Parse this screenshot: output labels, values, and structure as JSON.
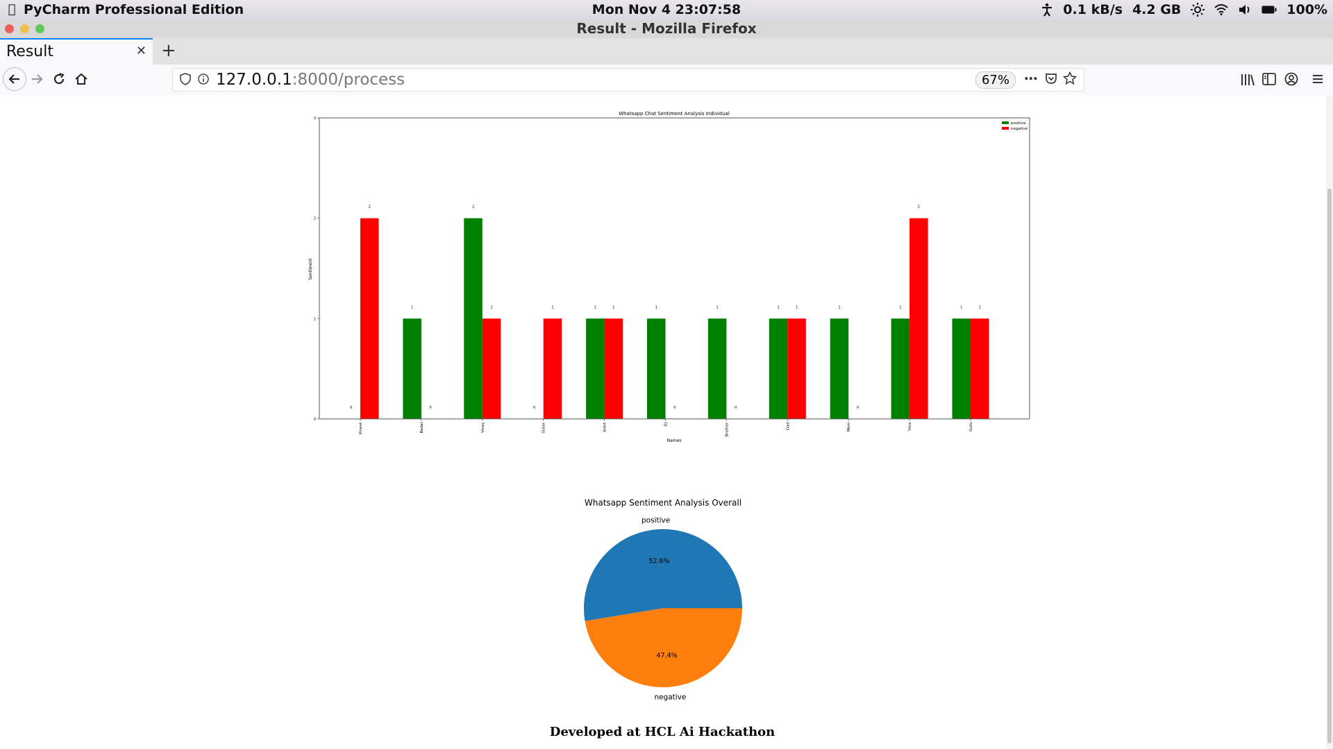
{
  "menubar": {
    "app_name": "PyCharm Professional Edition",
    "clock": "Mon Nov 4  23:07:58",
    "net_speed": "0.1 kB/s",
    "memory": "4.2 GB",
    "battery": "100%"
  },
  "window": {
    "title": "Result - Mozilla Firefox"
  },
  "tabs": [
    {
      "label": "Result"
    }
  ],
  "toolbar": {
    "url_host": "127.0.0.1",
    "url_path": ":8000/process",
    "zoom": "67%"
  },
  "colors": {
    "positive": "#008000",
    "negative": "#ff0000",
    "pie_positive": "#1f77b4",
    "pie_negative": "#ff7f0e"
  },
  "chart_data": [
    {
      "type": "bar",
      "title": "Whatsapp Chat Sentiment Analysis Individual",
      "xlabel": "Names",
      "ylabel": "Sentiment",
      "categories": [
        "Vineet",
        "Badal",
        "Vinay",
        "Sister",
        "Ankit",
        "Dj",
        "Brother",
        "Dad",
        "Mom",
        "Vina",
        "Gufu"
      ],
      "series": [
        {
          "name": "positive",
          "color": "#008000",
          "values": [
            0,
            1,
            2,
            0,
            1,
            1,
            1,
            1,
            1,
            1,
            1
          ]
        },
        {
          "name": "negative",
          "color": "#ff0000",
          "values": [
            2,
            0,
            1,
            1,
            1,
            0,
            0,
            1,
            0,
            2,
            1
          ]
        }
      ],
      "ylim": [
        0,
        3
      ],
      "yticks": [
        0,
        1,
        2,
        3
      ],
      "legend": "top-right",
      "grid": false
    },
    {
      "type": "pie",
      "title": "Whatsapp Sentiment Analysis Overall",
      "labels": [
        "positive",
        "negative"
      ],
      "values": [
        52.6,
        47.4
      ],
      "pct_labels": [
        "52.6%",
        "47.4%"
      ],
      "colors": [
        "#1f77b4",
        "#ff7f0e"
      ]
    }
  ],
  "footer": {
    "text": "Developed at HCL Ai Hackathon"
  }
}
